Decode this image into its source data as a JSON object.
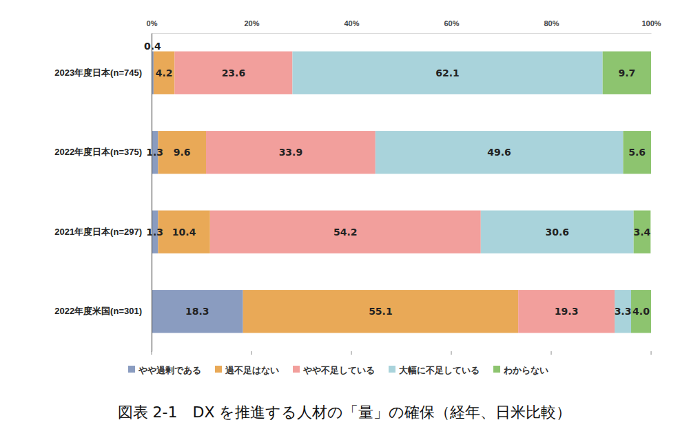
{
  "chart_data": {
    "type": "bar",
    "title": "図表 2-1　DX を推進する人材の「量」の確保（経年、日米比較）",
    "orientation": "horizontal",
    "stacked": true,
    "data_labels": true,
    "grid": false,
    "legend": "bottom",
    "categories": [
      "2023年度日本(n=745)",
      "2022年度日本(n=375)",
      "2021年度日本(n=297)",
      "2022年度米国(n=301)"
    ],
    "xlim": [
      0,
      100
    ],
    "xticks": [
      {
        "value": 0,
        "label": "0%"
      },
      {
        "value": 20,
        "label": "20%"
      },
      {
        "value": 40,
        "label": "40%"
      },
      {
        "value": 60,
        "label": "60%"
      },
      {
        "value": 80,
        "label": "80%"
      },
      {
        "value": 100,
        "label": "100%"
      }
    ],
    "series": [
      {
        "name": "やや過剰である",
        "color": "#8a9cc0",
        "values": [
          0.4,
          1.3,
          1.3,
          18.3
        ]
      },
      {
        "name": "過不足はない",
        "color": "#e9a957",
        "values": [
          4.2,
          9.6,
          10.4,
          55.1
        ]
      },
      {
        "name": "やや不足している",
        "color": "#f29f9c",
        "values": [
          23.6,
          33.9,
          54.2,
          19.3
        ]
      },
      {
        "name": "大幅に不足している",
        "color": "#a9d3db",
        "values": [
          62.1,
          49.6,
          30.6,
          3.3
        ]
      },
      {
        "name": "わからない",
        "color": "#8dc46f",
        "values": [
          9.7,
          5.6,
          3.4,
          4.0
        ],
        "value_labels": [
          "9.7",
          "5.6",
          "3.4",
          "4.0"
        ]
      }
    ]
  }
}
